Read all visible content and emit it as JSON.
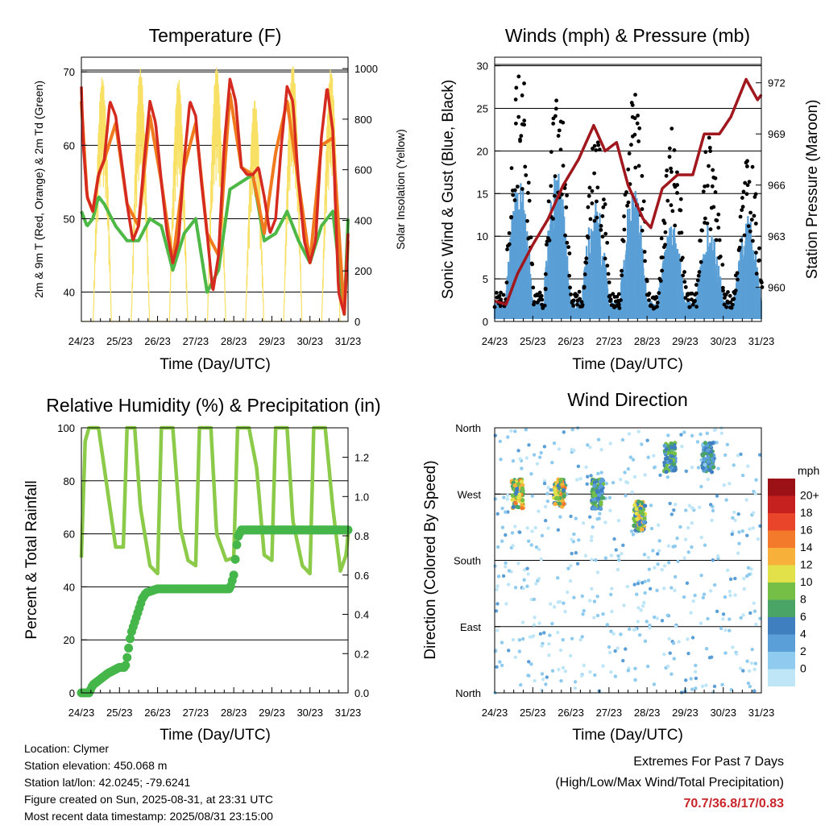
{
  "panels": {
    "temperature": {
      "title": "Temperature (F)",
      "ylabel_left": "2m & 9m T (Red, Orange) & 2m Td (Green)",
      "ylabel_right": "Solar Insolation (Yellow)",
      "xlabel": "Time (Day/UTC)"
    },
    "winds": {
      "title": "Winds (mph) & Pressure (mb)",
      "ylabel_left": "Sonic Wind & Gust (Blue, Black)",
      "ylabel_right": "Station Pressure (Maroon)",
      "xlabel": "Time (Day/UTC)"
    },
    "humidity": {
      "title": "Relative Humidity (%) & Precipitation (in)",
      "ylabel_left": "Percent & Total Rainfall",
      "xlabel": "Time (Day/UTC)"
    },
    "direction": {
      "title": "Wind Direction",
      "ylabel_left": "Direction (Colored By Speed)",
      "xlabel": "Time (Day/UTC)",
      "colorbar_title": "mph"
    }
  },
  "info": {
    "location": "Location: Clymer",
    "elevation": "Station elevation: 450.068 m",
    "latlon": "Station lat/lon: 42.0245; -79.6241",
    "created": "Figure created on Sun, 2025-08-31, at 23:31 UTC",
    "recent": "Most recent data timestamp: 2025/08/31 23:15:00"
  },
  "extremes": {
    "line1": "Extremes For Past 7 Days",
    "line2": "(High/Low/Max Wind/Total Precipitation)",
    "values": "70.7/36.8/17/0.83"
  },
  "colors": {
    "temp_2m": "#d42a1f",
    "temp_9m": "#f07a1d",
    "dewpoint": "#4db845",
    "solar": "#f7e063",
    "wind": "#5a9fd6",
    "gust": "#000000",
    "pressure": "#a0171d",
    "rh": "#8ccb4a",
    "precip": "#45b649",
    "speed_scale": [
      "#bfe6f7",
      "#8ecbee",
      "#5b9fd8",
      "#3f7fc0",
      "#4aa466",
      "#75bf46",
      "#e3e14a",
      "#f7b13b",
      "#f37a2b",
      "#e8452a",
      "#c7211f",
      "#9b1116"
    ]
  },
  "chart_data": [
    {
      "type": "line",
      "title": "Temperature (F)",
      "xlabel": "Time (Day/UTC)",
      "ylabel": "2m & 9m T (Red, Orange) & 2m Td (Green)",
      "y2label": "Solar Insolation (Yellow)",
      "x_ticks": [
        "24/23",
        "25/23",
        "26/23",
        "27/23",
        "28/23",
        "29/23",
        "30/23",
        "31/23"
      ],
      "ylim": [
        36,
        72
      ],
      "y_ticks": [
        40,
        50,
        60,
        70
      ],
      "y2lim": [
        0,
        1045
      ],
      "y2_ticks": [
        0,
        200,
        400,
        600,
        800,
        1000
      ],
      "series": [
        {
          "name": "2m T",
          "color": "#d42a1f",
          "x": [
            0,
            0.05,
            0.15,
            0.3,
            0.45,
            0.6,
            0.75,
            0.9,
            1.05,
            1.2,
            1.35,
            1.5,
            1.65,
            1.8,
            1.95,
            2.1,
            2.25,
            2.4,
            2.55,
            2.7,
            2.85,
            3.0,
            3.15,
            3.3,
            3.45,
            3.6,
            3.75,
            3.9,
            4.05,
            4.2,
            4.35,
            4.5,
            4.65,
            4.8,
            4.95,
            5.1,
            5.25,
            5.4,
            5.55,
            5.7,
            5.85,
            6.0,
            6.15,
            6.3,
            6.45,
            6.6,
            6.75,
            6.9,
            7.0
          ],
          "y": [
            68,
            60,
            53,
            51,
            56,
            58,
            66,
            64,
            58,
            52,
            47,
            49,
            58,
            66,
            63,
            55,
            48,
            44,
            47,
            58,
            66,
            64,
            55,
            48,
            40,
            45,
            60,
            69,
            66,
            57,
            56,
            56,
            57,
            53,
            48,
            50,
            60,
            68,
            66,
            55,
            47,
            44,
            47,
            61,
            68,
            62,
            40,
            37,
            48
          ]
        },
        {
          "name": "9m T",
          "color": "#f07a1d",
          "x": [
            0,
            0.15,
            0.3,
            0.45,
            0.6,
            0.9,
            1.2,
            1.5,
            1.8,
            2.1,
            2.4,
            2.7,
            3.0,
            3.3,
            3.6,
            3.9,
            4.2,
            4.5,
            4.8,
            5.1,
            5.4,
            5.7,
            6.0,
            6.3,
            6.6,
            6.9,
            7.0
          ],
          "y": [
            66,
            53,
            51,
            56,
            58,
            63,
            52,
            49,
            64,
            55,
            44,
            57,
            63,
            48,
            45,
            67,
            57,
            56,
            48,
            59,
            66,
            55,
            44,
            60,
            61,
            37,
            47
          ]
        },
        {
          "name": "2m Td",
          "color": "#4db845",
          "x": [
            0,
            0.15,
            0.3,
            0.45,
            0.6,
            0.9,
            1.2,
            1.5,
            1.8,
            2.1,
            2.4,
            2.7,
            3.0,
            3.3,
            3.6,
            3.9,
            4.2,
            4.5,
            4.8,
            5.1,
            5.4,
            5.7,
            6.0,
            6.3,
            6.6,
            6.9,
            7.0
          ],
          "y": [
            51,
            49,
            50,
            53,
            52,
            49,
            47,
            47,
            50,
            49,
            43,
            48,
            50,
            40,
            43,
            54,
            55,
            56,
            47,
            48,
            51,
            47,
            44,
            49,
            51,
            37,
            50
          ]
        },
        {
          "name": "Solar Insolation",
          "color": "#f7e063",
          "axis": "right",
          "peaks_day_fraction": [
            0.55,
            1.55,
            2.55,
            3.55,
            4.55,
            5.55,
            6.55
          ],
          "peak_values": [
            970,
            1000,
            960,
            1010,
            880,
            1020,
            1000
          ]
        }
      ]
    },
    {
      "type": "scatter",
      "title": "Winds (mph) & Pressure (mb)",
      "xlabel": "Time (Day/UTC)",
      "ylabel": "Sonic Wind & Gust (Blue, Black)",
      "y2label": "Station Pressure (Maroon)",
      "x_ticks": [
        "24/23",
        "25/23",
        "26/23",
        "27/23",
        "28/23",
        "29/23",
        "30/23",
        "31/23"
      ],
      "ylim": [
        0,
        31
      ],
      "y_ticks": [
        0,
        5,
        10,
        15,
        20,
        25,
        30
      ],
      "y2lim": [
        958,
        973.5
      ],
      "y2_ticks": [
        960,
        963,
        966,
        969,
        972
      ],
      "series": [
        {
          "name": "Sonic Wind",
          "color": "#5a9fd6",
          "daily_peak": [
            15,
            16,
            12,
            14,
            9,
            9,
            10
          ]
        },
        {
          "name": "Gust",
          "color": "#000000",
          "daily_peak": [
            29,
            25,
            20,
            25,
            20,
            20,
            17
          ]
        },
        {
          "name": "Station Pressure",
          "color": "#a0171d",
          "x": [
            0,
            0.3,
            0.6,
            1.0,
            1.4,
            1.8,
            2.2,
            2.6,
            2.9,
            3.2,
            3.5,
            3.9,
            4.1,
            4.4,
            4.8,
            5.2,
            5.5,
            5.9,
            6.2,
            6.6,
            6.9,
            7.0
          ],
          "y": [
            959.2,
            959,
            960.8,
            962.5,
            964,
            966,
            967.5,
            969.5,
            968,
            968.5,
            966,
            964,
            963.5,
            965.8,
            966.6,
            966.6,
            969,
            969,
            970,
            972.2,
            971,
            971.3
          ]
        }
      ]
    },
    {
      "type": "line",
      "title": "Relative Humidity (%) & Precipitation (in)",
      "xlabel": "Time (Day/UTC)",
      "ylabel": "Percent & Total Rainfall",
      "x_ticks": [
        "24/23",
        "25/23",
        "26/23",
        "27/23",
        "28/23",
        "29/23",
        "30/23",
        "31/23"
      ],
      "ylim": [
        0,
        100
      ],
      "y_ticks": [
        0,
        20,
        40,
        60,
        80,
        100
      ],
      "y2lim": [
        0,
        1.35
      ],
      "y2_ticks": [
        0.0,
        0.2,
        0.4,
        0.6,
        0.8,
        1.0,
        1.2
      ],
      "series": [
        {
          "name": "RH",
          "color": "#8ccb4a",
          "x": [
            0,
            0.1,
            0.2,
            0.45,
            0.6,
            0.9,
            1.1,
            1.2,
            1.4,
            1.55,
            1.8,
            2.0,
            2.1,
            2.4,
            2.6,
            2.8,
            3.0,
            3.1,
            3.4,
            3.55,
            3.8,
            4.0,
            4.1,
            4.4,
            4.6,
            4.8,
            5.0,
            5.1,
            5.4,
            5.55,
            5.8,
            6.0,
            6.1,
            6.4,
            6.6,
            6.8,
            6.95,
            7.0
          ],
          "y": [
            51,
            95,
            100,
            100,
            85,
            55,
            55,
            100,
            100,
            70,
            48,
            45,
            100,
            100,
            62,
            50,
            48,
            100,
            100,
            60,
            50,
            51,
            100,
            100,
            85,
            52,
            50,
            100,
            100,
            65,
            48,
            45,
            100,
            100,
            70,
            46,
            52,
            60
          ]
        },
        {
          "name": "Precipitation",
          "color": "#45b649",
          "axis": "right",
          "x": [
            0,
            0.2,
            0.3,
            0.5,
            0.7,
            1.0,
            1.15,
            1.2,
            1.3,
            1.5,
            1.6,
            1.7,
            2.0,
            3.0,
            3.9,
            4.0,
            4.05,
            4.1,
            4.2,
            7.0
          ],
          "y": [
            0.0,
            0.0,
            0.04,
            0.07,
            0.1,
            0.13,
            0.13,
            0.18,
            0.3,
            0.42,
            0.48,
            0.51,
            0.53,
            0.53,
            0.53,
            0.6,
            0.7,
            0.79,
            0.83,
            0.83
          ]
        }
      ]
    },
    {
      "type": "scatter",
      "title": "Wind Direction",
      "xlabel": "Time (Day/UTC)",
      "ylabel": "Direction (Colored By Speed)",
      "x_ticks": [
        "24/23",
        "25/23",
        "26/23",
        "27/23",
        "28/23",
        "29/23",
        "30/23",
        "31/23"
      ],
      "y_ticks": [
        "North",
        "West",
        "South",
        "East",
        "North"
      ],
      "y_values_deg": [
        360,
        270,
        180,
        90,
        0
      ],
      "colorbar_labels": [
        "20+",
        "18",
        "16",
        "14",
        "12",
        "10",
        "8",
        "6",
        "4",
        "2",
        "0"
      ],
      "colorbar_title": "mph",
      "clusters": [
        {
          "day": 0.6,
          "direction": "West",
          "max_speed": 18
        },
        {
          "day": 1.7,
          "direction": "West",
          "max_speed": 18
        },
        {
          "day": 2.7,
          "direction": "West",
          "max_speed": 12
        },
        {
          "day": 3.8,
          "direction": "West-Southwest",
          "max_speed": 16
        },
        {
          "day": 4.6,
          "direction": "Northwest",
          "max_speed": 12
        },
        {
          "day": 5.6,
          "direction": "Northwest",
          "max_speed": 10
        }
      ]
    }
  ]
}
